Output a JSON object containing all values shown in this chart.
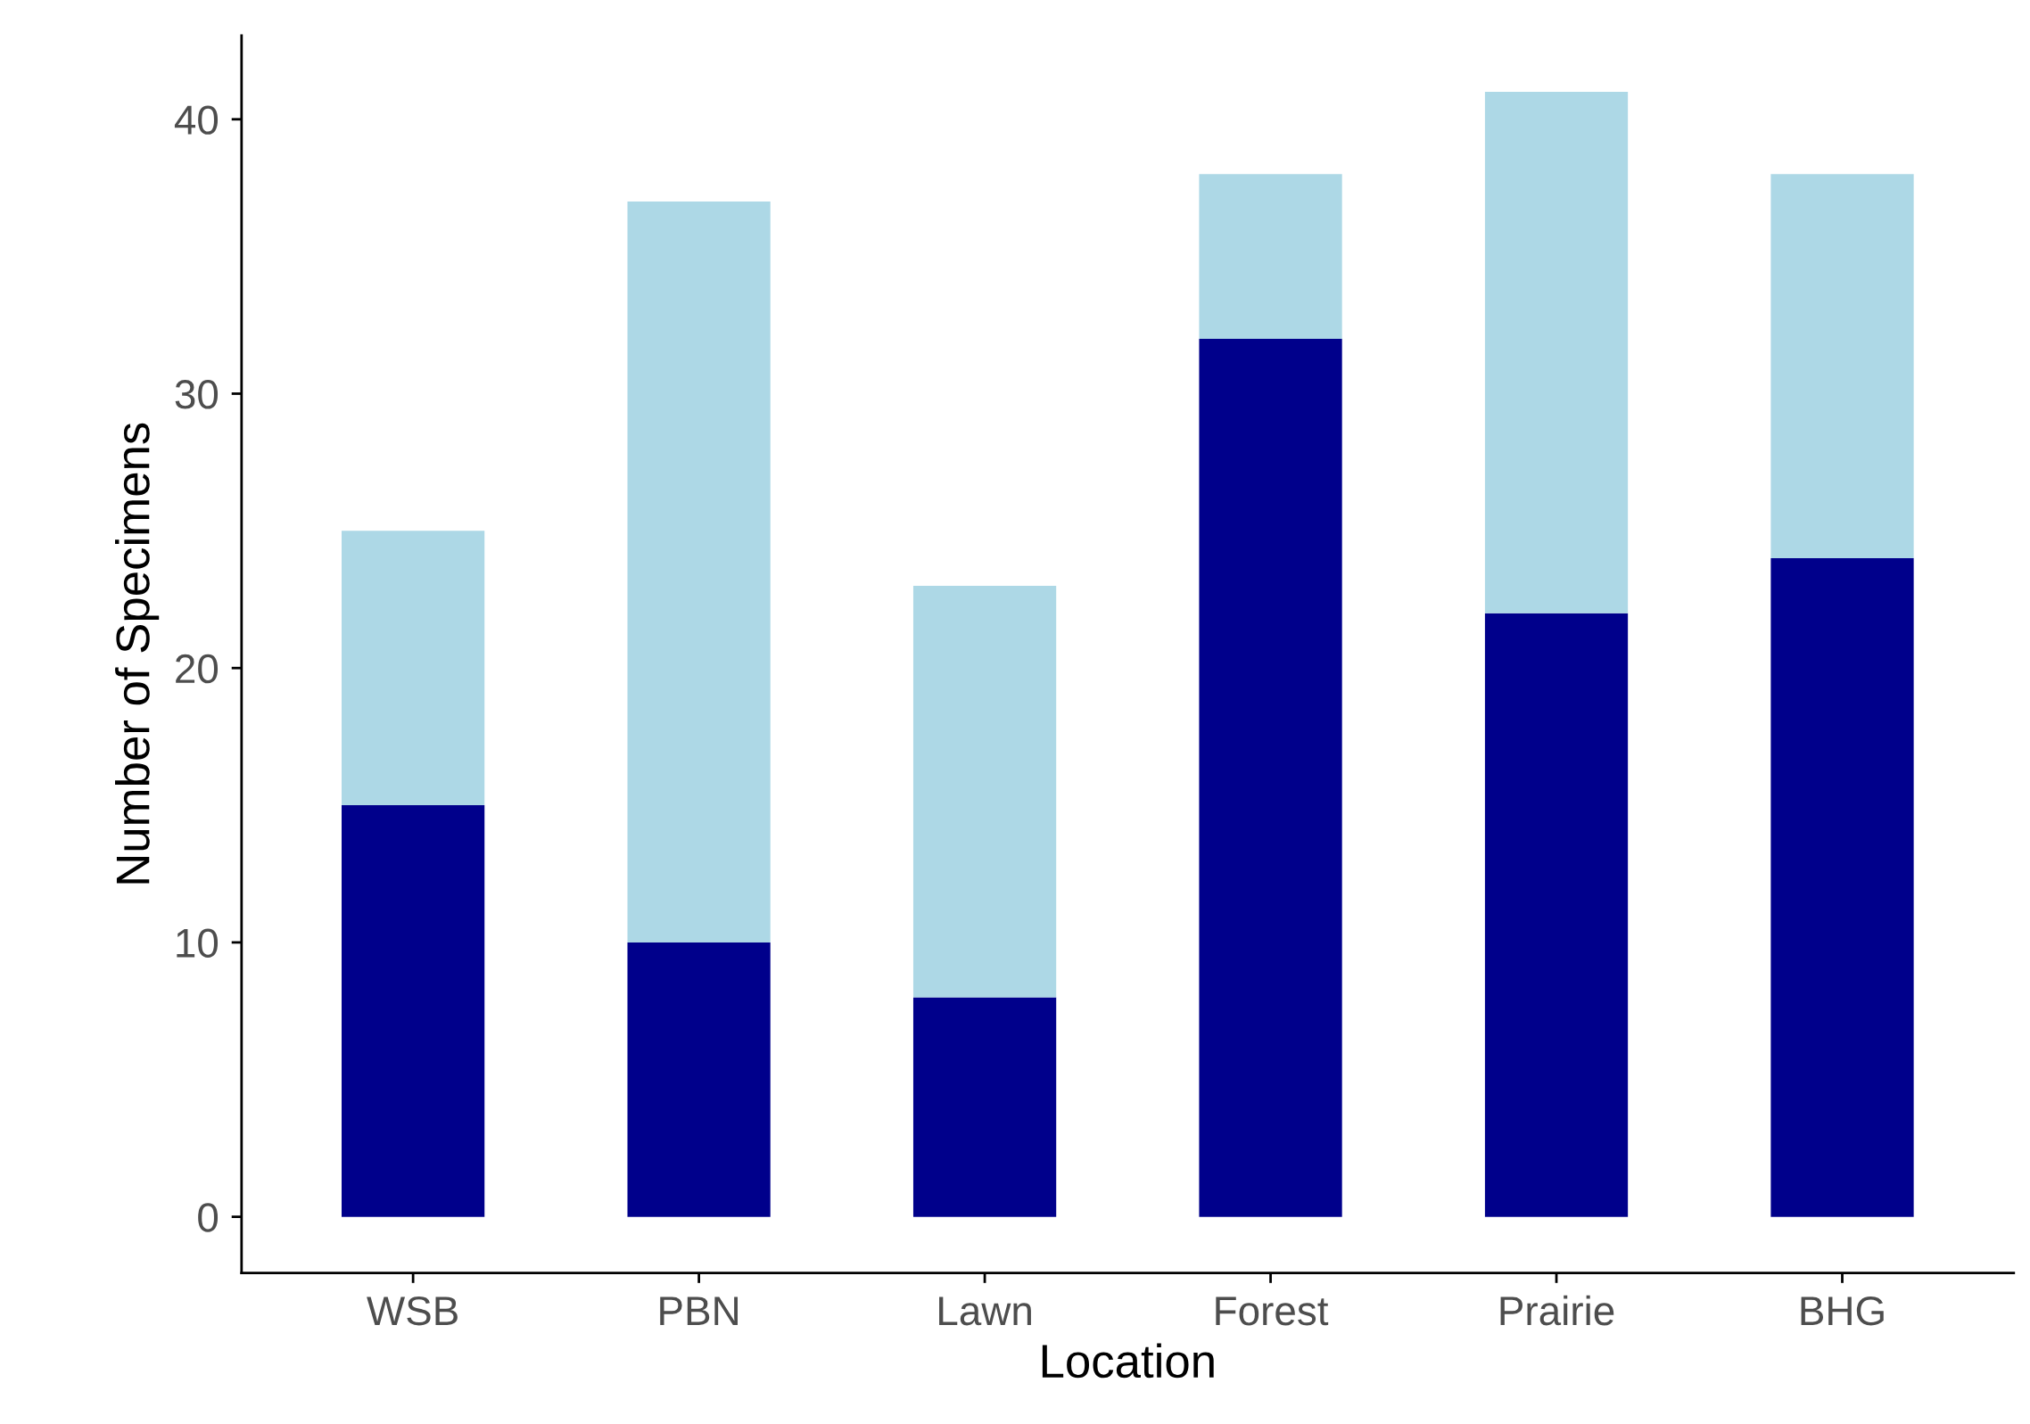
{
  "chart_data": {
    "type": "bar",
    "stacked": true,
    "xlabel": "Location",
    "ylabel": "Number of Specimens",
    "categories": [
      "WSB",
      "PBN",
      "Lawn",
      "Forest",
      "Prairie",
      "BHG"
    ],
    "series": [
      {
        "color": "#00008b",
        "values": [
          15,
          10,
          8,
          32,
          22,
          24
        ]
      },
      {
        "color": "#add8e6",
        "values": [
          10,
          27,
          15,
          6,
          19,
          14
        ]
      }
    ],
    "ylim": [
      -2.05,
      43.05
    ],
    "yticks": [
      0,
      10,
      20,
      30,
      40
    ],
    "grid": false
  }
}
